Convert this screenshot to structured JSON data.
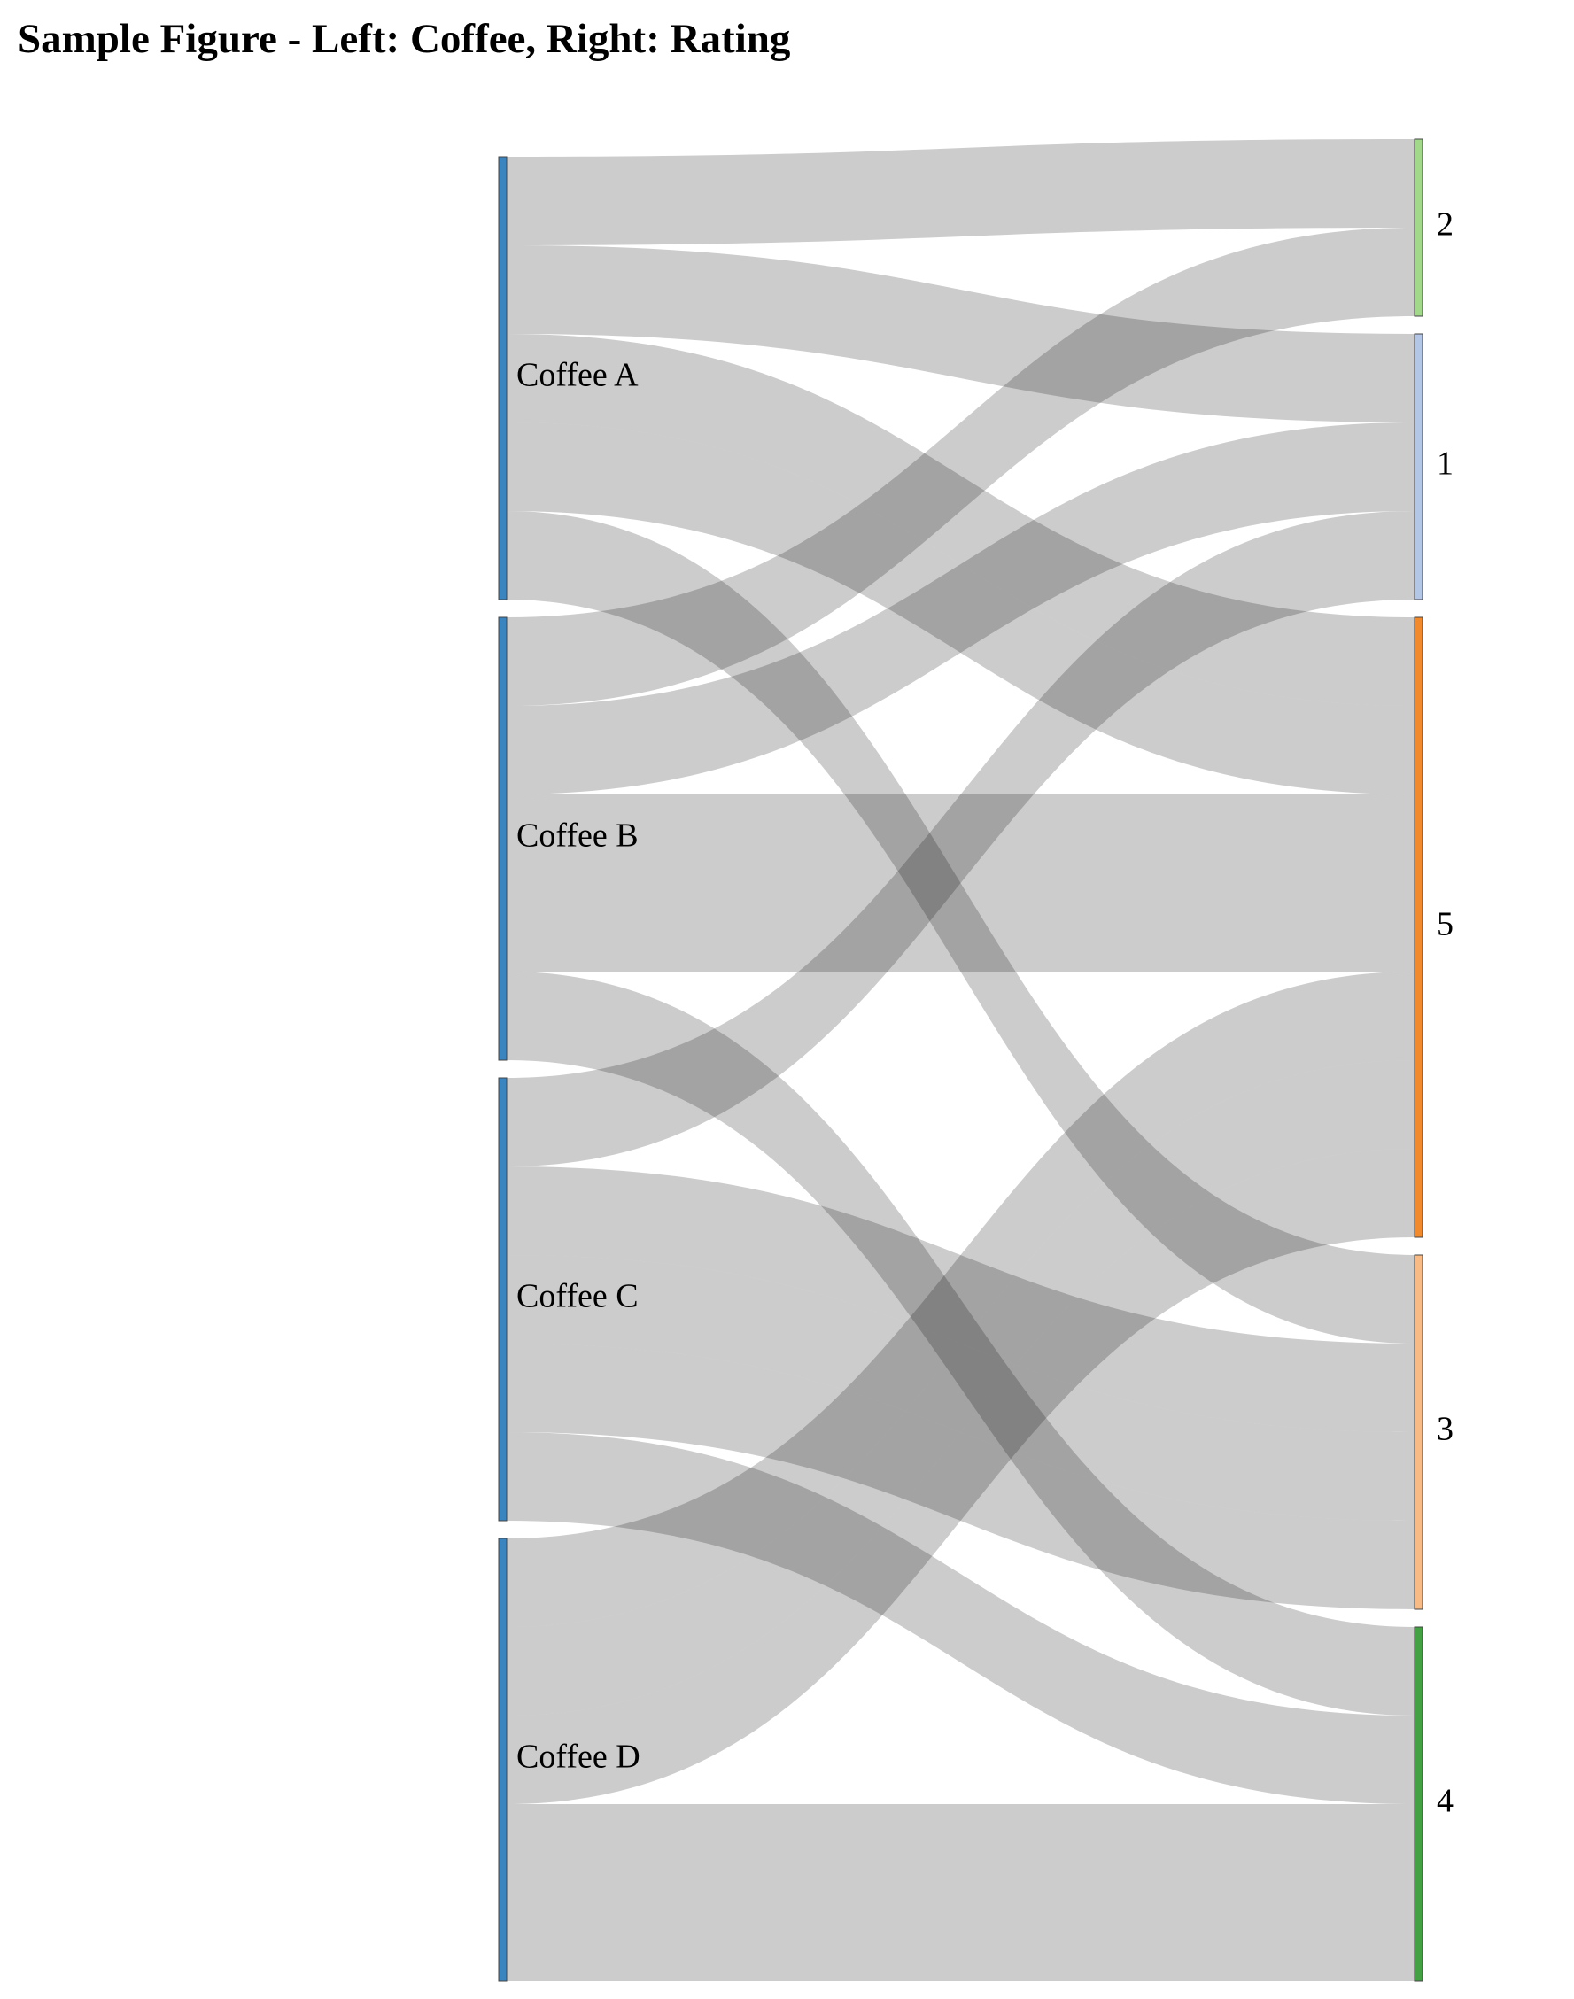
{
  "title": "Sample Figure - Left: Coffee, Right: Rating",
  "chart_data": {
    "type": "sankey",
    "title": "Sample Figure - Left: Coffee, Right: Rating",
    "left_nodes": [
      {
        "id": "A",
        "label": "Coffee A",
        "color": "#3a84c0"
      },
      {
        "id": "B",
        "label": "Coffee B",
        "color": "#3a84c0"
      },
      {
        "id": "C",
        "label": "Coffee C",
        "color": "#3a84c0"
      },
      {
        "id": "D",
        "label": "Coffee D",
        "color": "#3a84c0"
      }
    ],
    "right_nodes": [
      {
        "id": "2",
        "label": "2",
        "color": "#a1d889"
      },
      {
        "id": "1",
        "label": "1",
        "color": "#b4c6e6"
      },
      {
        "id": "5",
        "label": "5",
        "color": "#f18a2d"
      },
      {
        "id": "3",
        "label": "3",
        "color": "#f9bb85"
      },
      {
        "id": "4",
        "label": "4",
        "color": "#43a043"
      }
    ],
    "links": [
      {
        "source": "A",
        "target": "2",
        "value": 1
      },
      {
        "source": "A",
        "target": "1",
        "value": 1
      },
      {
        "source": "A",
        "target": "5",
        "value": 1
      },
      {
        "source": "A",
        "target": "5",
        "value": 1
      },
      {
        "source": "A",
        "target": "3",
        "value": 1
      },
      {
        "source": "B",
        "target": "2",
        "value": 1
      },
      {
        "source": "B",
        "target": "1",
        "value": 1
      },
      {
        "source": "B",
        "target": "5",
        "value": 2
      },
      {
        "source": "B",
        "target": "4",
        "value": 1
      },
      {
        "source": "C",
        "target": "1",
        "value": 1
      },
      {
        "source": "C",
        "target": "3",
        "value": 1
      },
      {
        "source": "C",
        "target": "3",
        "value": 1
      },
      {
        "source": "C",
        "target": "3",
        "value": 1
      },
      {
        "source": "C",
        "target": "4",
        "value": 1
      },
      {
        "source": "D",
        "target": "5",
        "value": 1
      },
      {
        "source": "D",
        "target": "5",
        "value": 1
      },
      {
        "source": "D",
        "target": "5",
        "value": 1
      },
      {
        "source": "D",
        "target": "4",
        "value": 2
      }
    ]
  }
}
